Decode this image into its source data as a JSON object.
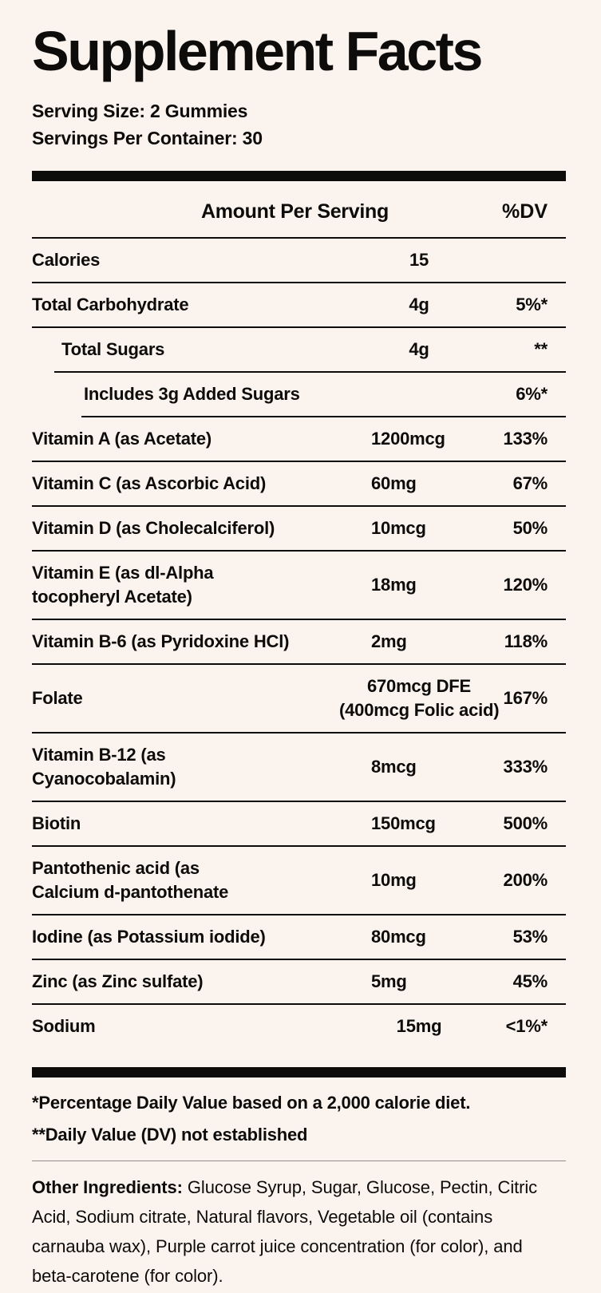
{
  "title": "Supplement Facts",
  "serving": {
    "size": "Serving Size: 2 Gummies",
    "per_container": "Servings Per Container: 30"
  },
  "table": {
    "header": {
      "amount": "Amount Per Serving",
      "dv": "%DV"
    },
    "rows": [
      {
        "label": "Calories",
        "amount": "15",
        "dv": "",
        "indent": 0,
        "amount_align": "center",
        "rule_indent": 0
      },
      {
        "label": "Total Carbohydrate",
        "amount": "4g",
        "dv": "5%*",
        "indent": 0,
        "amount_align": "center",
        "rule_indent": 0
      },
      {
        "label": "Total Sugars",
        "amount": "4g",
        "dv": "**",
        "indent": 37,
        "amount_align": "center",
        "rule_indent": 28
      },
      {
        "label": "Includes 3g Added Sugars",
        "amount": "",
        "dv": "6%*",
        "indent": 65,
        "amount_align": "center",
        "rule_indent": 62
      },
      {
        "label": "Vitamin A (as Acetate)",
        "amount": "1200mcg",
        "dv": "133%",
        "indent": 0,
        "amount_align": "left",
        "rule_indent": 0
      },
      {
        "label": "Vitamin C (as Ascorbic Acid)",
        "amount": "60mg",
        "dv": "67%",
        "indent": 0,
        "amount_align": "left",
        "rule_indent": 0
      },
      {
        "label": "Vitamin D (as Cholecalciferol)",
        "amount": "10mcg",
        "dv": "50%",
        "indent": 0,
        "amount_align": "left",
        "rule_indent": 0
      },
      {
        "label": "Vitamin E (as dl-Alpha\ntocopheryl Acetate)",
        "amount": "18mg",
        "dv": "120%",
        "indent": 0,
        "amount_align": "left",
        "rule_indent": 0
      },
      {
        "label": "Vitamin B-6 (as Pyridoxine HCl)",
        "amount": "2mg",
        "dv": "118%",
        "indent": 0,
        "amount_align": "left",
        "rule_indent": 0
      },
      {
        "label": "Folate",
        "amount": "670mcg DFE\n(400mcg Folic acid)",
        "dv": "167%",
        "indent": 0,
        "amount_align": "center",
        "rule_indent": 0
      },
      {
        "label": "Vitamin B-12 (as\nCyanocobalamin)",
        "amount": "8mcg",
        "dv": "333%",
        "indent": 0,
        "amount_align": "left",
        "rule_indent": 0
      },
      {
        "label": "Biotin",
        "amount": "150mcg",
        "dv": "500%",
        "indent": 0,
        "amount_align": "left",
        "rule_indent": 0
      },
      {
        "label": "Pantothenic acid (as\nCalcium d-pantothenate",
        "amount": "10mg",
        "dv": "200%",
        "indent": 0,
        "amount_align": "left",
        "rule_indent": 0
      },
      {
        "label": "Iodine (as Potassium iodide)",
        "amount": "80mcg",
        "dv": "53%",
        "indent": 0,
        "amount_align": "left",
        "rule_indent": 0
      },
      {
        "label": "Zinc (as Zinc sulfate)",
        "amount": "5mg",
        "dv": "45%",
        "indent": 0,
        "amount_align": "left",
        "rule_indent": 0
      },
      {
        "label": "Sodium",
        "amount": "15mg",
        "dv": "<1%*",
        "indent": 0,
        "amount_align": "center",
        "rule_indent": 0
      }
    ]
  },
  "footnotes": [
    "*Percentage Daily Value based on a 2,000 calorie diet.",
    "**Daily Value (DV) not established"
  ],
  "other_ingredients": {
    "label": "Other Ingredients:",
    "text": "Glucose Syrup, Sugar, Glucose, Pectin, Citric Acid, Sodium citrate, Natural flavors, Vegetable oil (contains carnauba wax), Purple carrot juice concentration (for color), and beta-carotene (for color)."
  },
  "colors": {
    "background": "#FAF3EE",
    "text": "#0D0C0B",
    "rule": "#0D0C0B",
    "gray_divider": "#908D89"
  }
}
